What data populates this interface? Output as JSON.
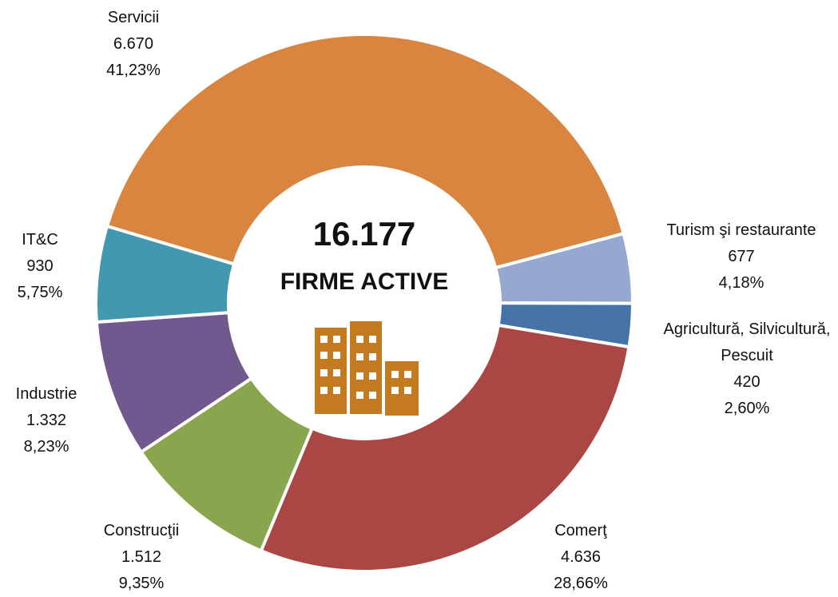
{
  "chart_data": {
    "type": "donut",
    "center_value": "16.177",
    "center_label": "FIRME ACTIVE",
    "categories": [
      "Servicii",
      "Turism şi restaurante",
      "Agricultură, Silvicultură, Pescuit",
      "Comerţ",
      "Construcţii",
      "Industrie",
      "IT&C"
    ],
    "values": [
      6670,
      677,
      420,
      4636,
      1512,
      1332,
      930
    ],
    "value_labels": [
      "6.670",
      "677",
      "420",
      "4.636",
      "1.512",
      "1.332",
      "930"
    ],
    "percentages": [
      41.23,
      4.18,
      2.6,
      28.66,
      9.35,
      8.23,
      5.75
    ],
    "percentage_labels": [
      "41,23%",
      "4,18%",
      "2,60%",
      "28,66%",
      "9,35%",
      "8,23%",
      "5,75%"
    ],
    "colors": [
      "#d9843f",
      "#95a9d0",
      "#4572a7",
      "#aa4643",
      "#89a54e",
      "#71588f",
      "#4198af"
    ]
  }
}
